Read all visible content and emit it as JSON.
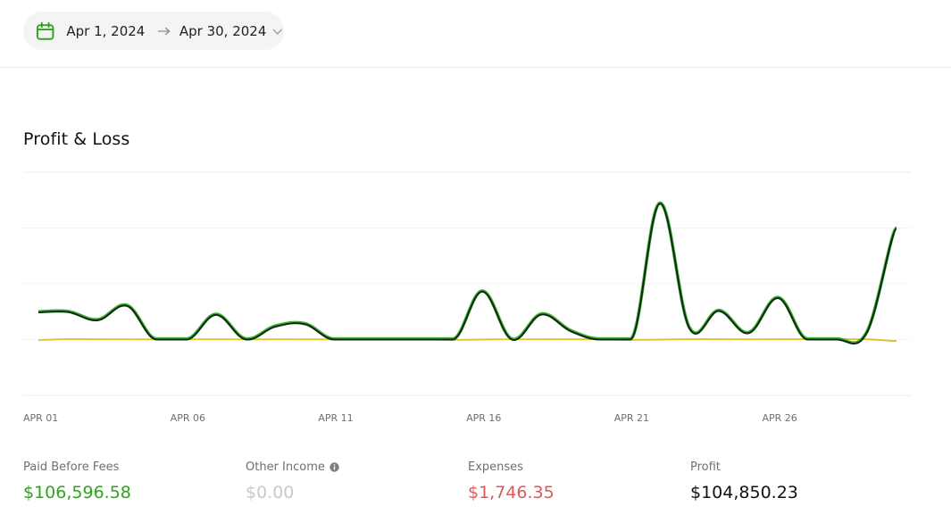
{
  "date_range": {
    "start": "Apr 1, 2024",
    "end": "Apr 30, 2024"
  },
  "icons": {
    "calendar": "calendar-icon",
    "arrow": "arrow-right-icon",
    "dropdown": "chevron-down-icon",
    "info": "info-icon"
  },
  "colors": {
    "accent_green": "#2fa31e",
    "profit_line": "#0f2a14",
    "profit_line_shadow": "#3cae2e",
    "expenses_line": "#e3bd2a",
    "expenses_value": "#e05858",
    "muted_value": "#c9c9c9",
    "grid": "#ececec"
  },
  "section": {
    "title": "Profit & Loss"
  },
  "chart_data": {
    "type": "line",
    "x": [
      "APR 01",
      "APR 02",
      "APR 03",
      "APR 04",
      "APR 05",
      "APR 06",
      "APR 07",
      "APR 08",
      "APR 09",
      "APR 10",
      "APR 11",
      "APR 12",
      "APR 13",
      "APR 14",
      "APR 15",
      "APR 16",
      "APR 17",
      "APR 18",
      "APR 19",
      "APR 20",
      "APR 21",
      "APR 22",
      "APR 23",
      "APR 24",
      "APR 25",
      "APR 26",
      "APR 27",
      "APR 28",
      "APR 29",
      "APR 30"
    ],
    "x_tick_labels": [
      "APR 01",
      "APR 06",
      "APR 11",
      "APR 16",
      "APR 21",
      "APR 26"
    ],
    "series": [
      {
        "key": "profit",
        "values": [
          3800,
          3850,
          2700,
          4700,
          0,
          0,
          3450,
          30,
          1800,
          2150,
          0,
          0,
          0,
          0,
          0,
          6700,
          0,
          3500,
          1150,
          0,
          0,
          19000,
          1600,
          4000,
          900,
          5800,
          0,
          0,
          1000,
          15500
        ]
      },
      {
        "key": "expenses",
        "values": [
          -60,
          60,
          40,
          30,
          25,
          30,
          35,
          20,
          30,
          25,
          20,
          40,
          25,
          20,
          -40,
          10,
          30,
          35,
          40,
          20,
          -40,
          0,
          45,
          50,
          30,
          45,
          55,
          60,
          40,
          -200
        ]
      }
    ],
    "ylim": [
      -7800,
      23400
    ],
    "grid": true,
    "legend": "none"
  },
  "summary": {
    "paid_before_fees": {
      "label": "Paid Before Fees",
      "value": "$106,596.58"
    },
    "other_income": {
      "label": "Other Income",
      "value": "$0.00"
    },
    "expenses": {
      "label": "Expenses",
      "value": "$1,746.35"
    },
    "profit": {
      "label": "Profit",
      "value": "$104,850.23"
    }
  }
}
